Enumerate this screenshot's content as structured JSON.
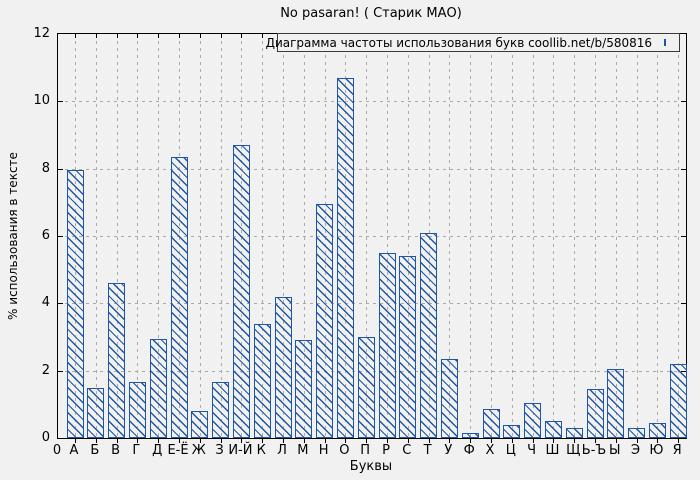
{
  "colors": {
    "bar_accent": "#1e55a5",
    "background": "#f1f1f1",
    "grid": "#a9a9a9",
    "axis": "#000000"
  },
  "legend": {
    "label": "Диаграмма частоты использования букв coollib.net/b/580816",
    "swatch": "hatched-bar-sample"
  },
  "chart_data": {
    "type": "bar",
    "title": "No pasaran! ( Старик МАО)",
    "xlabel": "Буквы",
    "ylabel": "% использования в тексте",
    "legend": "Диаграмма частоты использования букв coollib.net/b/580816",
    "legend_position": "top-right-boxed",
    "grid": true,
    "ylim": [
      0,
      12
    ],
    "yticks": [
      0,
      2,
      4,
      6,
      8,
      10,
      12
    ],
    "x_origin_label": "0",
    "categories": [
      "А",
      "Б",
      "В",
      "Г",
      "Д",
      "Е-Ё",
      "Ж",
      "З",
      "И-Й",
      "К",
      "Л",
      "М",
      "Н",
      "О",
      "П",
      "Р",
      "С",
      "Т",
      "У",
      "Ф",
      "Х",
      "Ц",
      "Ч",
      "Ш",
      "Щ",
      "Ь-Ъ",
      "Ы",
      "Э",
      "Ю",
      "Я"
    ],
    "values": [
      7.95,
      1.5,
      4.6,
      1.65,
      2.95,
      8.35,
      0.8,
      1.65,
      8.7,
      3.4,
      4.2,
      2.9,
      6.95,
      10.7,
      3.0,
      5.5,
      5.4,
      6.1,
      2.35,
      0.15,
      0.85,
      0.4,
      1.05,
      0.5,
      0.3,
      1.45,
      2.05,
      0.3,
      0.45,
      2.2
    ],
    "bar_style": "blue-diagonal-hatch"
  }
}
